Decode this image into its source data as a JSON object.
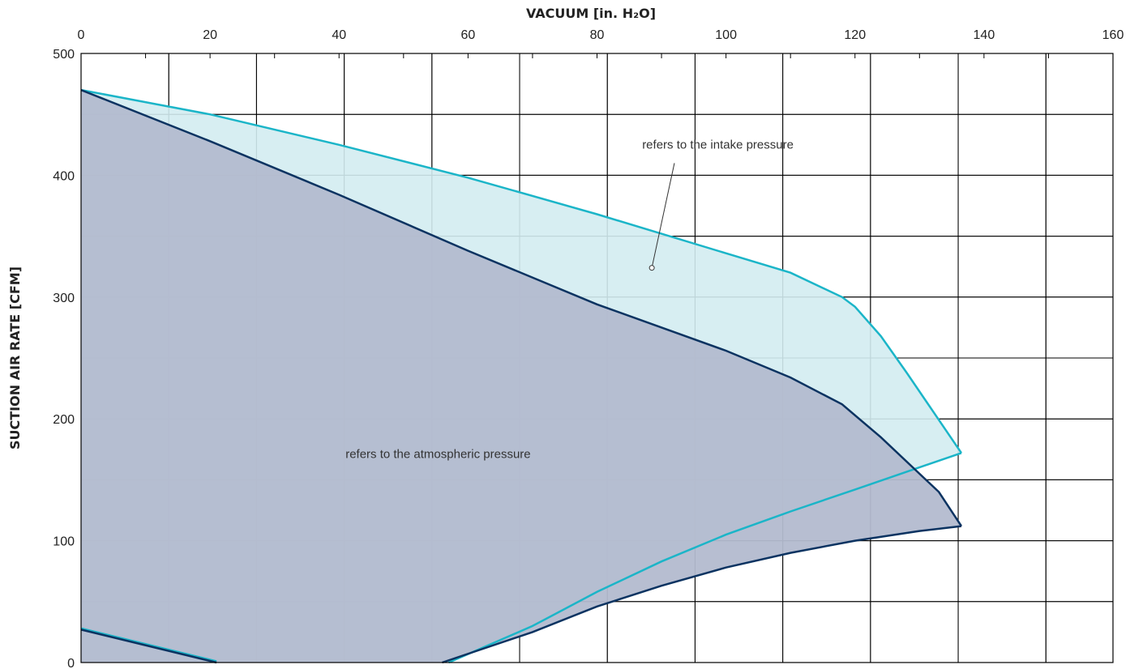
{
  "chart_data": {
    "type": "area",
    "title": "",
    "xlabel": "VACUUM  [in. H₂O]",
    "ylabel": "SUCTION AIR RATE  [CFM]",
    "xlim": [
      0,
      160
    ],
    "ylim": [
      0,
      500
    ],
    "x_ticks": [
      0,
      20,
      40,
      60,
      80,
      100,
      120,
      140,
      160
    ],
    "y_ticks": [
      0,
      100,
      200,
      300,
      400,
      500
    ],
    "x_axis_position": "top",
    "grid": true,
    "legend": "none",
    "colors": {
      "atmospheric_fill": "#b3bbcf",
      "atmospheric_line": "#0b3361",
      "intake_fill": "#d3ecf1",
      "intake_line": "#1bb5c8",
      "grid": "#000000"
    },
    "series": [
      {
        "upper": [
          [
            0,
            470
          ],
          [
            20,
            428
          ],
          [
            40,
            384
          ],
          [
            60,
            338
          ],
          [
            80,
            294
          ],
          [
            100,
            256
          ],
          [
            110,
            234
          ],
          [
            118,
            212
          ],
          [
            124,
            185
          ],
          [
            130,
            155
          ],
          [
            133,
            140
          ],
          [
            136.5,
            112
          ]
        ],
        "lower": [
          [
            56,
            0
          ],
          [
            70,
            25
          ],
          [
            80,
            46
          ],
          [
            90,
            63
          ],
          [
            100,
            78
          ],
          [
            110,
            90
          ],
          [
            120,
            100
          ],
          [
            130,
            108
          ],
          [
            136.5,
            112
          ]
        ],
        "stub": [
          [
            0,
            27
          ],
          [
            21,
            0
          ]
        ]
      },
      {
        "upper": [
          [
            0,
            470
          ],
          [
            20,
            450
          ],
          [
            40,
            425
          ],
          [
            60,
            398
          ],
          [
            80,
            368
          ],
          [
            100,
            336
          ],
          [
            110,
            320
          ],
          [
            118,
            300
          ],
          [
            120,
            292
          ],
          [
            124,
            268
          ],
          [
            128,
            238
          ],
          [
            136.5,
            172
          ]
        ],
        "lower": [
          [
            57,
            0
          ],
          [
            70,
            30
          ],
          [
            80,
            58
          ],
          [
            90,
            83
          ],
          [
            100,
            105
          ],
          [
            110,
            124
          ],
          [
            120,
            142
          ],
          [
            136.5,
            172
          ]
        ],
        "stub": [
          [
            0,
            28
          ],
          [
            21,
            1
          ]
        ]
      }
    ],
    "annotations": [
      {
        "text": "refers to the intake pressure",
        "x": 87,
        "y": 422,
        "pointer": [
          [
            92,
            410
          ],
          [
            88.5,
            324
          ]
        ]
      },
      {
        "text": "refers to the atmospheric pressure",
        "x": 41,
        "y": 168
      }
    ]
  }
}
